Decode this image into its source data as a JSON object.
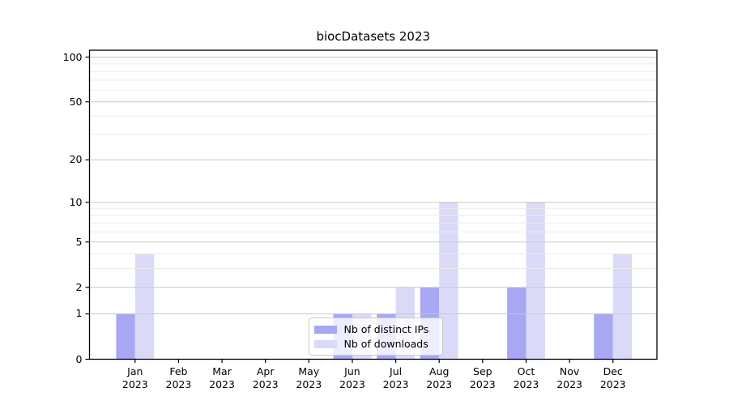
{
  "title": "biocDatasets 2023",
  "chart_data": {
    "type": "bar",
    "title": "biocDatasets 2023",
    "categories": [
      "Jan 2023",
      "Feb 2023",
      "Mar 2023",
      "Apr 2023",
      "May 2023",
      "Jun 2023",
      "Jul 2023",
      "Aug 2023",
      "Sep 2023",
      "Oct 2023",
      "Nov 2023",
      "Dec 2023"
    ],
    "x_tick_months": [
      "Jan",
      "Feb",
      "Mar",
      "Apr",
      "May",
      "Jun",
      "Jul",
      "Aug",
      "Sep",
      "Oct",
      "Nov",
      "Dec"
    ],
    "x_tick_year": "2023",
    "series": [
      {
        "name": "Nb of distinct IPs",
        "color": "#a7a7f4",
        "values": [
          1,
          0,
          0,
          0,
          0,
          1,
          1,
          2,
          0,
          2,
          0,
          1
        ]
      },
      {
        "name": "Nb of downloads",
        "color": "#dadaf8",
        "values": [
          4,
          0,
          0,
          0,
          0,
          1,
          2,
          10,
          0,
          10,
          0,
          4
        ]
      }
    ],
    "xlabel": "",
    "ylabel": "",
    "y_scale": "log1p",
    "ylim": [
      0,
      101
    ],
    "y_major_ticks": [
      0,
      1,
      2,
      5,
      10,
      20,
      50,
      100
    ],
    "y_minor_gridlines": [
      3,
      4,
      6,
      7,
      8,
      9,
      30,
      40,
      60,
      70,
      80,
      90
    ],
    "grid": true,
    "legend_position": "lower center"
  },
  "colors": {
    "background": "#ffffff",
    "spine": "#000000",
    "grid_major": "#c8c8c8",
    "grid_minor": "#ebebeb",
    "legend_border": "#c9c9c9",
    "distinct_ips": "#a7a7f4",
    "downloads": "#dadaf8"
  }
}
